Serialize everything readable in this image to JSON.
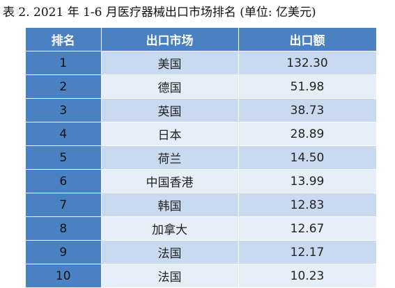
{
  "caption": "表 2. 2021 年 1-6 月医疗器械出口市场排名 (单位: 亿美元)",
  "table": {
    "headers": {
      "rank": "排名",
      "market": "出口市场",
      "amount": "出口额"
    },
    "rows": [
      {
        "rank": "1",
        "market": "美国",
        "amount": "132.30"
      },
      {
        "rank": "2",
        "market": "德国",
        "amount": "51.98"
      },
      {
        "rank": "3",
        "market": "英国",
        "amount": "38.73"
      },
      {
        "rank": "4",
        "market": "日本",
        "amount": "28.89"
      },
      {
        "rank": "5",
        "market": "荷兰",
        "amount": "14.50"
      },
      {
        "rank": "6",
        "market": "中国香港",
        "amount": "13.99"
      },
      {
        "rank": "7",
        "market": "韩国",
        "amount": "12.83"
      },
      {
        "rank": "8",
        "market": "加拿大",
        "amount": "12.67"
      },
      {
        "rank": "9",
        "market": "法国",
        "amount": "12.17"
      },
      {
        "rank": "10",
        "market": "法国",
        "amount": "10.23"
      }
    ]
  },
  "colors": {
    "header_bg": "#4a81c3",
    "row_dark": "#c9daf0",
    "row_light": "#e6eef8"
  }
}
